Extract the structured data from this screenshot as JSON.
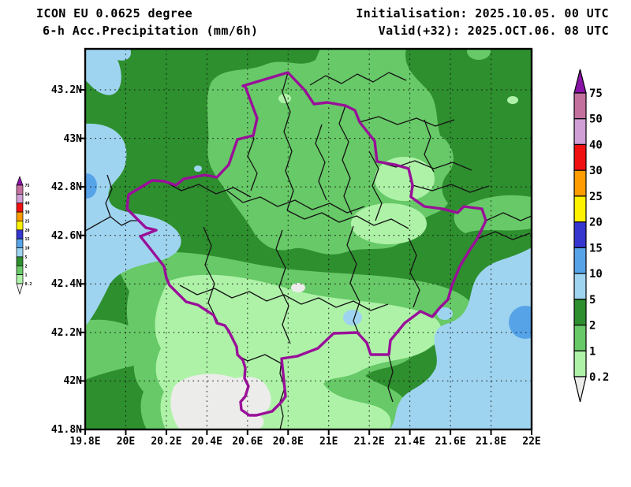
{
  "header": {
    "model_line": "ICON EU 0.0625 degree",
    "product_line": "6-h Acc.Precipitation (mm/6h)",
    "init_line": "Initialisation: 2025.10.05. 00 UTC",
    "valid_line": "Valid(+32): 2025.OCT.06. 08 UTC"
  },
  "axes": {
    "x_tick_labels": [
      "19.8E",
      "20E",
      "20.2E",
      "20.4E",
      "20.6E",
      "20.8E",
      "21E",
      "21.2E",
      "21.4E",
      "21.6E",
      "21.8E",
      "22E"
    ],
    "y_tick_labels": [
      "43.2N",
      "43N",
      "42.8N",
      "42.6N",
      "42.4N",
      "42.2N",
      "42N",
      "41.8N"
    ],
    "x_range": [
      "19.8E",
      "22E"
    ],
    "y_range": [
      "41.8N",
      "43.37N"
    ]
  },
  "colorbar": {
    "levels": [
      "75",
      "50",
      "40",
      "30",
      "25",
      "20",
      "15",
      "10",
      "5",
      "2",
      "1",
      "0.2"
    ],
    "segment_keys": [
      "mauve",
      "plum",
      "red",
      "orange",
      "yellow",
      "blue_royal",
      "blue_mid",
      "blue_light",
      "green_dark",
      "green_mid",
      "green_light"
    ],
    "over_key": "purple_over",
    "under_key": "grey_under",
    "units": "mm/6h"
  },
  "map_palette": {
    "grey_under": "#ececea",
    "green_light": "#aef2a8",
    "green_mid": "#67c967",
    "green_dark": "#2e8f2e",
    "blue_light": "#9fd4f0",
    "blue_mid": "#57a3e8",
    "blue_royal": "#3535cf",
    "yellow": "#fff200",
    "orange": "#ff9c00",
    "red": "#f01010",
    "plum": "#d09fd6",
    "mauve": "#c4709f",
    "purple_over": "#8a14a8",
    "national_border": "#990f99",
    "admin_border": "#141414",
    "grid": "#111111",
    "frame": "#000000"
  }
}
